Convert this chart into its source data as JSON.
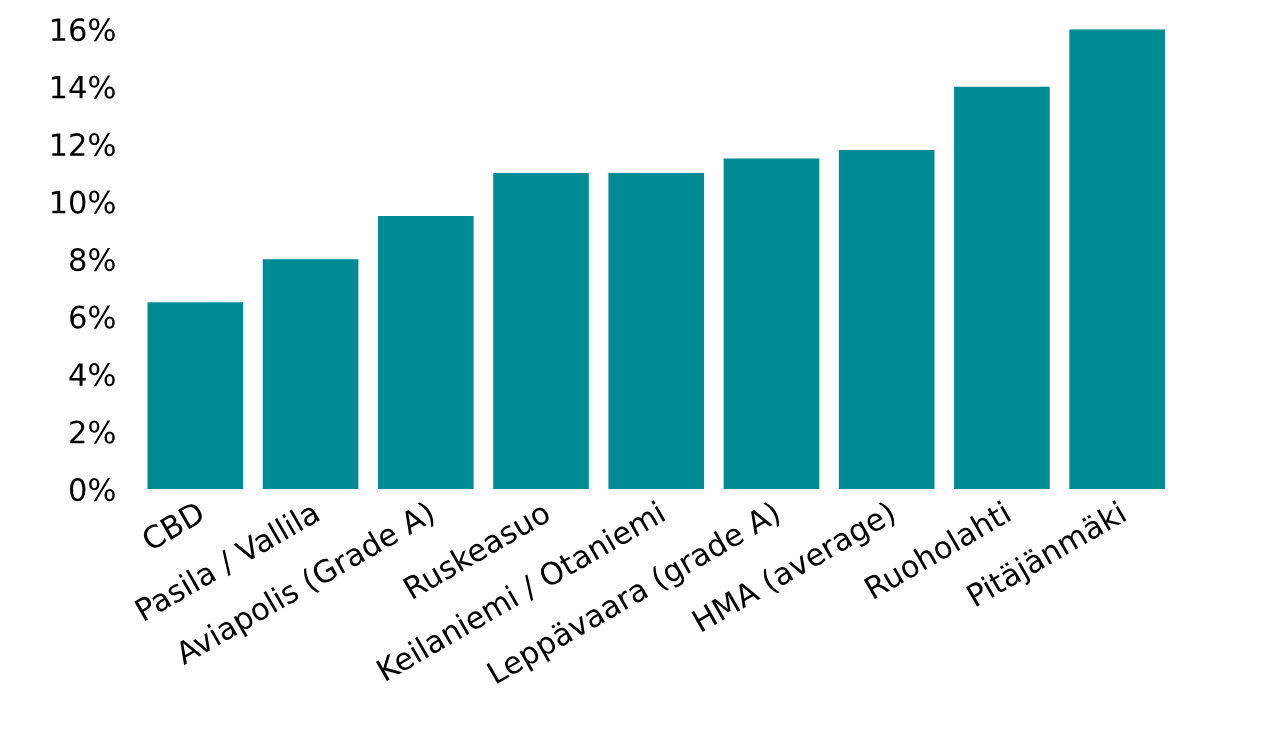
{
  "chart_data": {
    "type": "bar",
    "categories": [
      "CBD",
      "Pasila / Vallila",
      "Aviapolis (Grade A)",
      "Ruskeasuo",
      "Keilaniemi / Otaniemi",
      "Leppävaara (grade A)",
      "HMA (average)",
      "Ruoholahti",
      "Pitäjänmäki"
    ],
    "values": [
      6.5,
      8,
      9.5,
      11,
      11,
      11.5,
      11.8,
      14,
      16
    ],
    "color": "#008a94",
    "ylim": [
      0,
      16
    ],
    "yticks": [
      {
        "value": 0,
        "label": "0%"
      },
      {
        "value": 2,
        "label": "2%"
      },
      {
        "value": 4,
        "label": "4%"
      },
      {
        "value": 6,
        "label": "6%"
      },
      {
        "value": 8,
        "label": "8%"
      },
      {
        "value": 10,
        "label": "10%"
      },
      {
        "value": 12,
        "label": "12%"
      },
      {
        "value": 14,
        "label": "14%"
      },
      {
        "value": 16,
        "label": "16%"
      }
    ],
    "grid": false
  }
}
